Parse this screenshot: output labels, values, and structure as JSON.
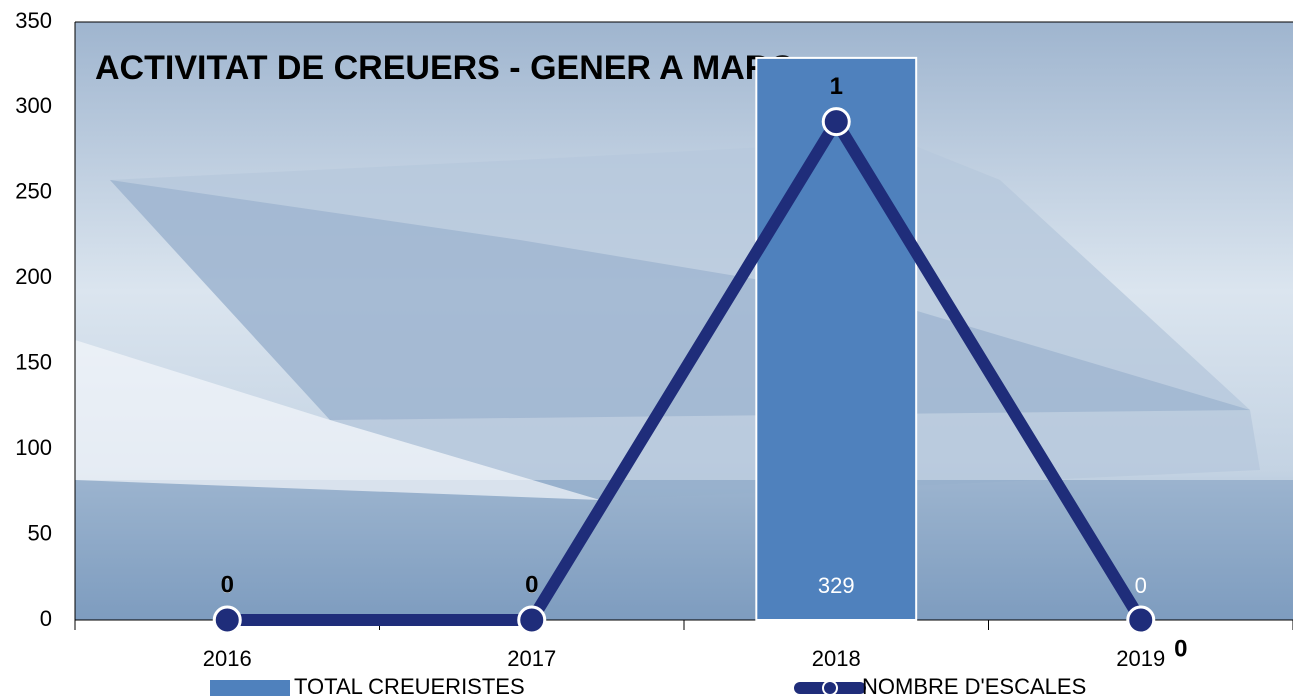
{
  "chart_data": {
    "type": "bar",
    "title": "ACTIVITAT DE CREUERS - GENER A MARÇ",
    "categories": [
      "2016",
      "2017",
      "2018",
      "2019"
    ],
    "series": [
      {
        "name": "TOTAL CREUERISTES",
        "type": "bar",
        "color": "#4f81bd",
        "values": [
          0,
          0,
          329,
          0
        ]
      },
      {
        "name": "NOMBRE D'ESCALES",
        "type": "line",
        "axis": "y2",
        "color": "#1f2d7a",
        "values": [
          0,
          0,
          1,
          0
        ]
      }
    ],
    "ylim": [
      0,
      350
    ],
    "yticks": [
      0,
      50,
      100,
      150,
      200,
      250,
      300,
      350
    ],
    "y2lim": [
      0,
      1.2
    ],
    "grid": false
  }
}
